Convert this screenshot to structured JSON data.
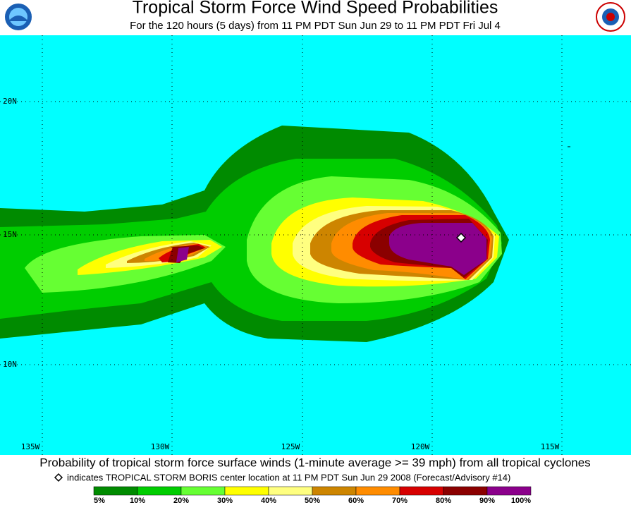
{
  "header": {
    "title": "Tropical Storm Force Wind Speed Probabilities",
    "subtitle": "For the 120 hours (5 days) from 11 PM PDT Sun Jun 29 to 11 PM PDT Fri Jul 4"
  },
  "map": {
    "lat_labels": [
      "20N",
      "15N",
      "10N"
    ],
    "lon_labels": [
      "135W",
      "130W",
      "125W",
      "120W",
      "115W"
    ]
  },
  "footer": {
    "caption": "Probability of tropical storm force surface winds (1-minute average >= 39 mph) from all tropical cyclones",
    "note": "indicates TROPICAL STORM BORIS center location at 11 PM PDT Sun Jun 29 2008 (Forecast/Advisory #14)"
  },
  "legend": {
    "labels": [
      "5%",
      "10%",
      "20%",
      "30%",
      "40%",
      "50%",
      "60%",
      "70%",
      "80%",
      "90%",
      "100%"
    ],
    "colors": [
      "#008b00",
      "#00cd00",
      "#66ff33",
      "#ffff00",
      "#ffff80",
      "#cd8500",
      "#ff8c00",
      "#d70000",
      "#8b0000",
      "#8b008b"
    ]
  }
}
